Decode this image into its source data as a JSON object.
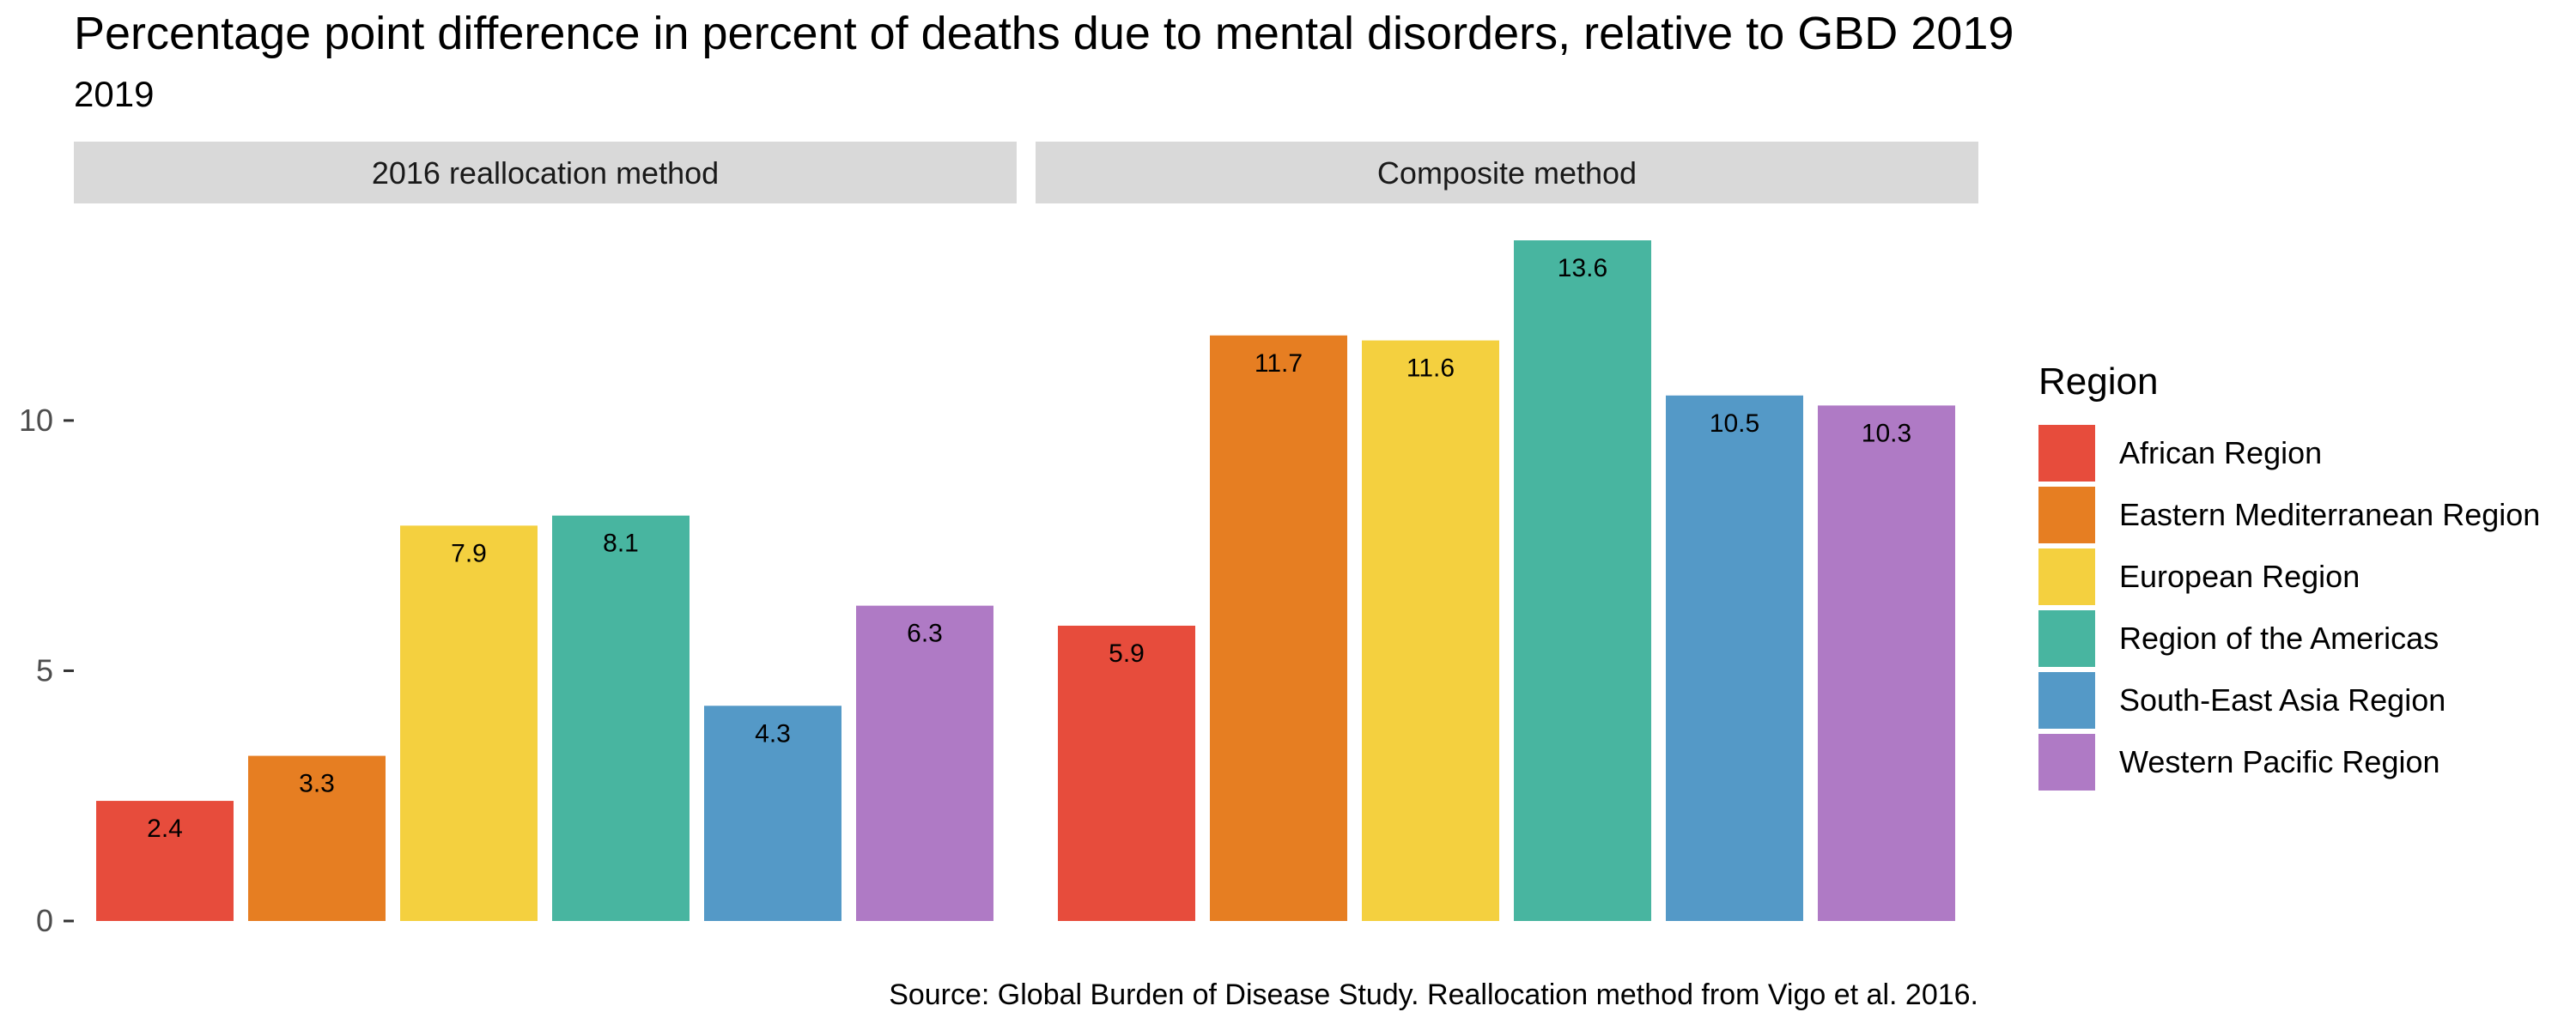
{
  "chart_data": {
    "type": "bar",
    "title": "Percentage point difference in percent of deaths due to mental disorders, relative to GBD 2019",
    "subtitle": "2019",
    "caption": "Source: Global Burden of Disease Study. Reallocation method from Vigo et al. 2016.",
    "xlabel": "",
    "ylabel": "",
    "ylim": [
      0,
      13.6
    ],
    "y_ticks": [
      0,
      5,
      10
    ],
    "y_tick_labels": [
      "0",
      "5",
      "10"
    ],
    "grid": false,
    "legend_title": "Region",
    "legend_position": "right",
    "categories": [
      "African Region",
      "Eastern Mediterranean Region",
      "European Region",
      "Region of the Americas",
      "South-East Asia Region",
      "Western Pacific Region"
    ],
    "colors": [
      "#e74c3c",
      "#e67e22",
      "#f4d03f",
      "#48b5a0",
      "#5499c7",
      "#af7ac5"
    ],
    "panels": [
      {
        "name": "2016 reallocation method",
        "values": [
          2.4,
          3.3,
          7.9,
          8.1,
          4.3,
          6.3
        ]
      },
      {
        "name": "Composite method",
        "values": [
          5.9,
          11.7,
          11.6,
          13.6,
          10.5,
          10.3
        ]
      }
    ]
  }
}
